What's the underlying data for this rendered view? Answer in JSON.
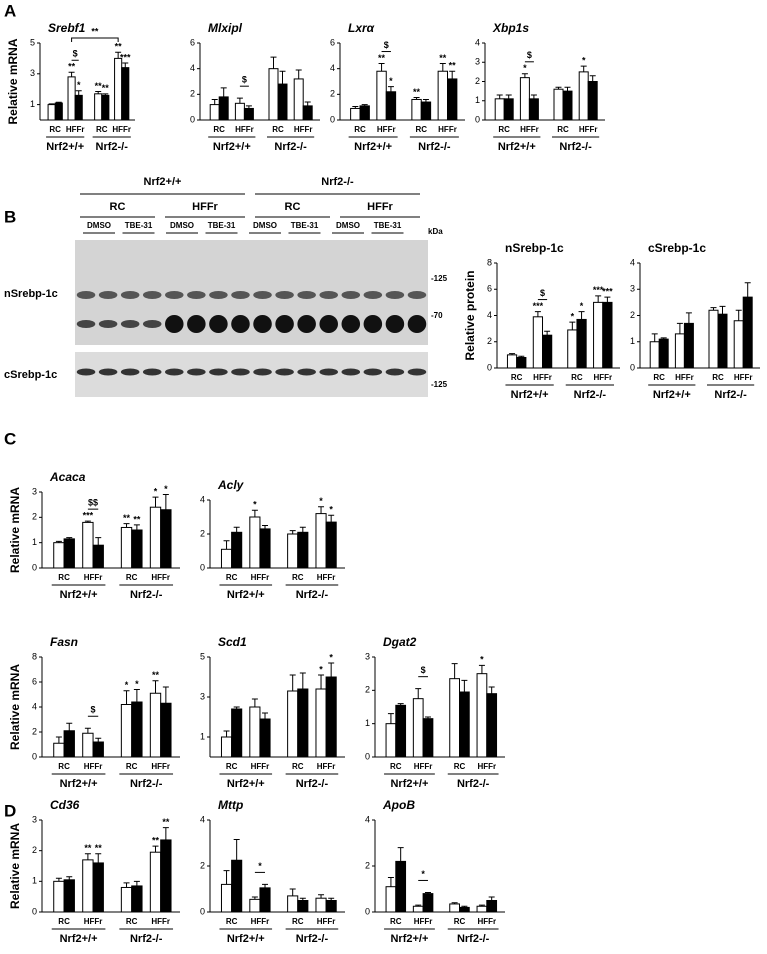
{
  "panel_labels": [
    "A",
    "B",
    "C",
    "D"
  ],
  "blot": {
    "genotypes": [
      "Nrf2+/+",
      "Nrf2-/-"
    ],
    "diets": [
      "RC",
      "HFFr",
      "RC",
      "HFFr"
    ],
    "treatments": [
      "DMSO",
      "TBE-31",
      "DMSO",
      "TBE-31",
      "DMSO",
      "TBE-31",
      "DMSO",
      "TBE-31"
    ],
    "unit": "kDa",
    "markers": [
      "-125",
      "-70",
      "-125"
    ],
    "bands": [
      "nSrebp-1c",
      "cSrebp-1c"
    ]
  },
  "chart_data": [
    {
      "type": "bar",
      "title": "Srebf1",
      "italic": true,
      "ylabel": "Relative mRNA",
      "ylim": [
        0,
        5
      ],
      "yticks": [
        1,
        3,
        5
      ],
      "categories": [
        "RC",
        "HFFr",
        "RC",
        "HFFr"
      ],
      "groups": [
        "Nrf2+/+",
        "Nrf2-/-"
      ],
      "series": [
        {
          "color": "#ffffff",
          "values": [
            1.0,
            2.8,
            1.7,
            4.0
          ],
          "errors": [
            0.05,
            0.3,
            0.15,
            0.4
          ],
          "annotations": [
            null,
            "**",
            "**",
            "**"
          ]
        },
        {
          "color": "#000000",
          "values": [
            1.1,
            1.6,
            1.6,
            3.4
          ],
          "errors": [
            0.05,
            0.3,
            0.1,
            0.3
          ],
          "annotations": [
            null,
            "*",
            "**",
            "***"
          ]
        }
      ],
      "comparison_labels": [
        null,
        "$",
        null,
        null
      ],
      "bracket_label": "**"
    },
    {
      "type": "bar",
      "title": "Mlxipl",
      "italic": true,
      "ylim": [
        0,
        6
      ],
      "yticks": [
        0,
        2,
        4,
        6
      ],
      "categories": [
        "RC",
        "HFFr",
        "RC",
        "HFFr"
      ],
      "groups": [
        "Nrf2+/+",
        "Nrf2-/-"
      ],
      "series": [
        {
          "color": "#ffffff",
          "values": [
            1.2,
            1.3,
            4.0,
            3.2
          ],
          "errors": [
            0.4,
            0.4,
            0.9,
            0.7
          ],
          "annotations": [
            null,
            null,
            null,
            null
          ]
        },
        {
          "color": "#000000",
          "values": [
            1.8,
            0.9,
            2.8,
            1.1
          ],
          "errors": [
            0.7,
            0.2,
            1.0,
            0.3
          ],
          "annotations": [
            null,
            null,
            null,
            null
          ]
        }
      ],
      "comparison_labels": [
        null,
        "$",
        null,
        null
      ]
    },
    {
      "type": "bar",
      "title": "Lxrα",
      "italic": true,
      "ylim": [
        0,
        6
      ],
      "yticks": [
        0,
        2,
        4,
        6
      ],
      "categories": [
        "RC",
        "HFFr",
        "RC",
        "HFFr"
      ],
      "groups": [
        "Nrf2+/+",
        "Nrf2-/-"
      ],
      "series": [
        {
          "color": "#ffffff",
          "values": [
            0.9,
            3.8,
            1.6,
            3.8
          ],
          "errors": [
            0.15,
            0.6,
            0.15,
            0.6
          ],
          "annotations": [
            null,
            "**",
            "**",
            "**"
          ]
        },
        {
          "color": "#000000",
          "values": [
            1.1,
            2.2,
            1.4,
            3.2
          ],
          "errors": [
            0.1,
            0.4,
            0.2,
            0.6
          ],
          "annotations": [
            null,
            "*",
            null,
            "**"
          ]
        }
      ],
      "comparison_labels": [
        null,
        "$",
        null,
        null
      ]
    },
    {
      "type": "bar",
      "title": "Xbp1s",
      "italic": true,
      "ylim": [
        0,
        4
      ],
      "yticks": [
        0,
        1,
        2,
        3,
        4
      ],
      "categories": [
        "RC",
        "HFFr",
        "RC",
        "HFFr"
      ],
      "groups": [
        "Nrf2+/+",
        "Nrf2-/-"
      ],
      "series": [
        {
          "color": "#ffffff",
          "values": [
            1.1,
            2.2,
            1.6,
            2.5
          ],
          "errors": [
            0.2,
            0.2,
            0.1,
            0.3
          ],
          "annotations": [
            null,
            "*",
            null,
            "*"
          ]
        },
        {
          "color": "#000000",
          "values": [
            1.1,
            1.1,
            1.5,
            2.0
          ],
          "errors": [
            0.2,
            0.2,
            0.2,
            0.3
          ],
          "annotations": [
            null,
            null,
            null,
            null
          ]
        }
      ],
      "comparison_labels": [
        null,
        "$",
        null,
        null
      ]
    },
    {
      "type": "bar",
      "title": "nSrebp-1c",
      "italic": false,
      "ylabel": "Relative protein",
      "ylim": [
        0,
        8
      ],
      "yticks": [
        0,
        2,
        4,
        6,
        8
      ],
      "categories": [
        "RC",
        "HFFr",
        "RC",
        "HFFr"
      ],
      "groups": [
        "Nrf2+/+",
        "Nrf2-/-"
      ],
      "series": [
        {
          "color": "#ffffff",
          "values": [
            1.0,
            3.9,
            2.9,
            5.0
          ],
          "errors": [
            0.1,
            0.4,
            0.6,
            0.5
          ],
          "annotations": [
            null,
            "***",
            "*",
            "***"
          ]
        },
        {
          "color": "#000000",
          "values": [
            0.8,
            2.5,
            3.7,
            5.0
          ],
          "errors": [
            0.1,
            0.3,
            0.6,
            0.4
          ],
          "annotations": [
            null,
            null,
            "*",
            "***"
          ]
        }
      ],
      "comparison_labels": [
        null,
        "$",
        null,
        null
      ]
    },
    {
      "type": "bar",
      "title": "cSrebp-1c",
      "italic": false,
      "ylim": [
        0,
        4
      ],
      "yticks": [
        0,
        1,
        2,
        3,
        4
      ],
      "categories": [
        "RC",
        "HFFr",
        "RC",
        "HFFr"
      ],
      "groups": [
        "Nrf2+/+",
        "Nrf2-/-"
      ],
      "series": [
        {
          "color": "#ffffff",
          "values": [
            1.0,
            1.3,
            2.2,
            1.8
          ],
          "errors": [
            0.3,
            0.4,
            0.1,
            0.4
          ],
          "annotations": [
            null,
            null,
            null,
            null
          ]
        },
        {
          "color": "#000000",
          "values": [
            1.1,
            1.7,
            2.05,
            2.7
          ],
          "errors": [
            0.05,
            0.4,
            0.3,
            0.55
          ],
          "annotations": [
            null,
            null,
            null,
            null
          ]
        }
      ],
      "comparison_labels": [
        null,
        null,
        null,
        null
      ]
    },
    {
      "type": "bar",
      "title": "Acaca",
      "italic": true,
      "ylabel": "Relative mRNA",
      "ylim": [
        0,
        3
      ],
      "yticks": [
        0,
        1,
        2,
        3
      ],
      "categories": [
        "RC",
        "HFFr",
        "RC",
        "HFFr"
      ],
      "groups": [
        "Nrf2+/+",
        "Nrf2-/-"
      ],
      "series": [
        {
          "color": "#ffffff",
          "values": [
            1.0,
            1.8,
            1.6,
            2.4
          ],
          "errors": [
            0.05,
            0.05,
            0.15,
            0.4
          ],
          "annotations": [
            null,
            "***",
            "**",
            "*"
          ]
        },
        {
          "color": "#000000",
          "values": [
            1.15,
            0.9,
            1.5,
            2.3
          ],
          "errors": [
            0.05,
            0.3,
            0.2,
            0.6
          ],
          "annotations": [
            null,
            null,
            "**",
            "*"
          ]
        }
      ],
      "comparison_labels": [
        null,
        "$$",
        null,
        null
      ]
    },
    {
      "type": "bar",
      "title": "Acly",
      "italic": true,
      "ylim": [
        0,
        4
      ],
      "yticks": [
        0,
        2,
        4
      ],
      "categories": [
        "RC",
        "HFFr",
        "RC",
        "HFFr"
      ],
      "groups": [
        "Nrf2+/+",
        "Nrf2-/-"
      ],
      "series": [
        {
          "color": "#ffffff",
          "values": [
            1.1,
            3.0,
            2.0,
            3.2
          ],
          "errors": [
            0.5,
            0.4,
            0.2,
            0.4
          ],
          "annotations": [
            null,
            "*",
            null,
            "*"
          ]
        },
        {
          "color": "#000000",
          "values": [
            2.1,
            2.3,
            2.1,
            2.7
          ],
          "errors": [
            0.3,
            0.2,
            0.3,
            0.4
          ],
          "annotations": [
            null,
            null,
            null,
            "*"
          ]
        }
      ],
      "comparison_labels": [
        null,
        null,
        null,
        null
      ]
    },
    {
      "type": "bar",
      "title": "Fasn",
      "italic": true,
      "ylabel": "Relative mRNA",
      "ylim": [
        0,
        8
      ],
      "yticks": [
        0,
        2,
        4,
        6,
        8
      ],
      "categories": [
        "RC",
        "HFFr",
        "RC",
        "HFFr"
      ],
      "groups": [
        "Nrf2+/+",
        "Nrf2-/-"
      ],
      "series": [
        {
          "color": "#ffffff",
          "values": [
            1.1,
            1.9,
            4.2,
            5.1
          ],
          "errors": [
            0.5,
            0.4,
            1.1,
            1.0
          ],
          "annotations": [
            null,
            null,
            "*",
            "**"
          ]
        },
        {
          "color": "#000000",
          "values": [
            2.1,
            1.2,
            4.4,
            4.3
          ],
          "errors": [
            0.6,
            0.3,
            1.0,
            1.3
          ],
          "annotations": [
            null,
            null,
            "*",
            null
          ]
        }
      ],
      "comparison_labels": [
        null,
        "$",
        null,
        null
      ]
    },
    {
      "type": "bar",
      "title": "Scd1",
      "italic": true,
      "ylim": [
        0,
        5
      ],
      "yticks": [
        1,
        3,
        5
      ],
      "categories": [
        "RC",
        "HFFr",
        "RC",
        "HFFr"
      ],
      "groups": [
        "Nrf2+/+",
        "Nrf2-/-"
      ],
      "series": [
        {
          "color": "#ffffff",
          "values": [
            1.0,
            2.5,
            3.3,
            3.4
          ],
          "errors": [
            0.3,
            0.4,
            0.8,
            0.7
          ],
          "annotations": [
            null,
            null,
            null,
            "*"
          ]
        },
        {
          "color": "#000000",
          "values": [
            2.4,
            1.9,
            3.4,
            4.0
          ],
          "errors": [
            0.1,
            0.3,
            0.8,
            0.7
          ],
          "annotations": [
            null,
            null,
            null,
            "*"
          ]
        }
      ],
      "comparison_labels": [
        null,
        null,
        null,
        null
      ]
    },
    {
      "type": "bar",
      "title": "Dgat2",
      "italic": true,
      "ylim": [
        0,
        3
      ],
      "yticks": [
        0,
        1,
        2,
        3
      ],
      "categories": [
        "RC",
        "HFFr",
        "RC",
        "HFFr"
      ],
      "groups": [
        "Nrf2+/+",
        "Nrf2-/-"
      ],
      "series": [
        {
          "color": "#ffffff",
          "values": [
            1.0,
            1.75,
            2.35,
            2.5
          ],
          "errors": [
            0.3,
            0.3,
            0.45,
            0.25
          ],
          "annotations": [
            null,
            null,
            null,
            "*"
          ]
        },
        {
          "color": "#000000",
          "values": [
            1.55,
            1.15,
            1.95,
            1.9
          ],
          "errors": [
            0.05,
            0.05,
            0.35,
            0.2
          ],
          "annotations": [
            null,
            null,
            null,
            null
          ]
        }
      ],
      "comparison_labels": [
        null,
        "$",
        null,
        null
      ]
    },
    {
      "type": "bar",
      "title": "Cd36",
      "italic": true,
      "ylabel": "Relative mRNA",
      "ylim": [
        0,
        3
      ],
      "yticks": [
        0,
        1,
        2,
        3
      ],
      "categories": [
        "RC",
        "HFFr",
        "RC",
        "HFFr"
      ],
      "groups": [
        "Nrf2+/+",
        "Nrf2-/-"
      ],
      "series": [
        {
          "color": "#ffffff",
          "values": [
            1.0,
            1.7,
            0.8,
            1.95
          ],
          "errors": [
            0.1,
            0.2,
            0.15,
            0.2
          ],
          "annotations": [
            null,
            "**",
            null,
            "**"
          ]
        },
        {
          "color": "#000000",
          "values": [
            1.05,
            1.6,
            0.85,
            2.35
          ],
          "errors": [
            0.1,
            0.3,
            0.15,
            0.4
          ],
          "annotations": [
            null,
            "**",
            null,
            "**"
          ]
        }
      ],
      "comparison_labels": [
        null,
        null,
        null,
        null
      ]
    },
    {
      "type": "bar",
      "title": "Mttp",
      "italic": true,
      "ylim": [
        0,
        4
      ],
      "yticks": [
        0,
        2,
        4
      ],
      "categories": [
        "RC",
        "HFFr",
        "RC",
        "HFFr"
      ],
      "groups": [
        "Nrf2+/+",
        "Nrf2-/-"
      ],
      "series": [
        {
          "color": "#ffffff",
          "values": [
            1.2,
            0.55,
            0.7,
            0.6
          ],
          "errors": [
            0.6,
            0.1,
            0.3,
            0.15
          ],
          "annotations": [
            null,
            null,
            null,
            null
          ]
        },
        {
          "color": "#000000",
          "values": [
            2.25,
            1.05,
            0.5,
            0.5
          ],
          "errors": [
            0.9,
            0.15,
            0.1,
            0.1
          ],
          "annotations": [
            null,
            null,
            null,
            null
          ]
        }
      ],
      "comparison_labels": [
        null,
        "*",
        null,
        null
      ]
    },
    {
      "type": "bar",
      "title": "ApoB",
      "italic": true,
      "ylim": [
        0,
        4
      ],
      "yticks": [
        0,
        2,
        4
      ],
      "categories": [
        "RC",
        "HFFr",
        "RC",
        "HFFr"
      ],
      "groups": [
        "Nrf2+/+",
        "Nrf2-/-"
      ],
      "series": [
        {
          "color": "#ffffff",
          "values": [
            1.1,
            0.25,
            0.35,
            0.25
          ],
          "errors": [
            0.4,
            0.05,
            0.05,
            0.05
          ],
          "annotations": [
            null,
            null,
            null,
            null
          ]
        },
        {
          "color": "#000000",
          "values": [
            2.2,
            0.8,
            0.2,
            0.5
          ],
          "errors": [
            0.6,
            0.05,
            0.05,
            0.15
          ],
          "annotations": [
            null,
            null,
            null,
            null
          ]
        }
      ],
      "comparison_labels": [
        null,
        "*",
        null,
        null
      ]
    }
  ]
}
